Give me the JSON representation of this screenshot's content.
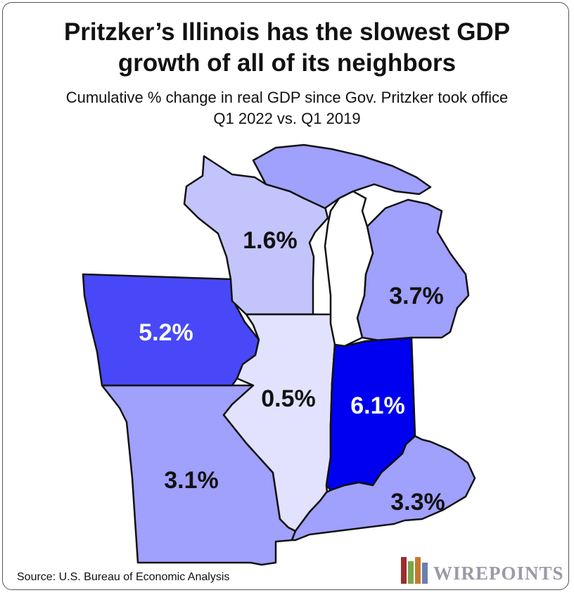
{
  "title_line1": "Pritzker’s Illinois has the slowest GDP",
  "title_line2": "growth of all of its neighbors",
  "subtitle_line1": "Cumulative % change in real GDP since Gov. Pritzker took office",
  "subtitle_line2": "Q1 2022 vs. Q1 2019",
  "states": {
    "wisconsin": {
      "value": "1.6%",
      "color": "#c4c4fd",
      "text_color": "#111111"
    },
    "michigan": {
      "value": "3.7%",
      "color": "#a0a0fd",
      "text_color": "#111111"
    },
    "iowa": {
      "value": "5.2%",
      "color": "#4848f8",
      "text_color": "#ffffff"
    },
    "illinois": {
      "value": "0.5%",
      "color": "#e2e2fe",
      "text_color": "#111111"
    },
    "indiana": {
      "value": "6.1%",
      "color": "#0000f0",
      "text_color": "#ffffff"
    },
    "missouri": {
      "value": "3.1%",
      "color": "#a0a0fd",
      "text_color": "#111111"
    },
    "kentucky": {
      "value": "3.3%",
      "color": "#a0a0fd",
      "text_color": "#111111"
    }
  },
  "source": "Source: U.S. Bureau of Economic Analysis",
  "logo_text": "WIREPOINTS"
}
